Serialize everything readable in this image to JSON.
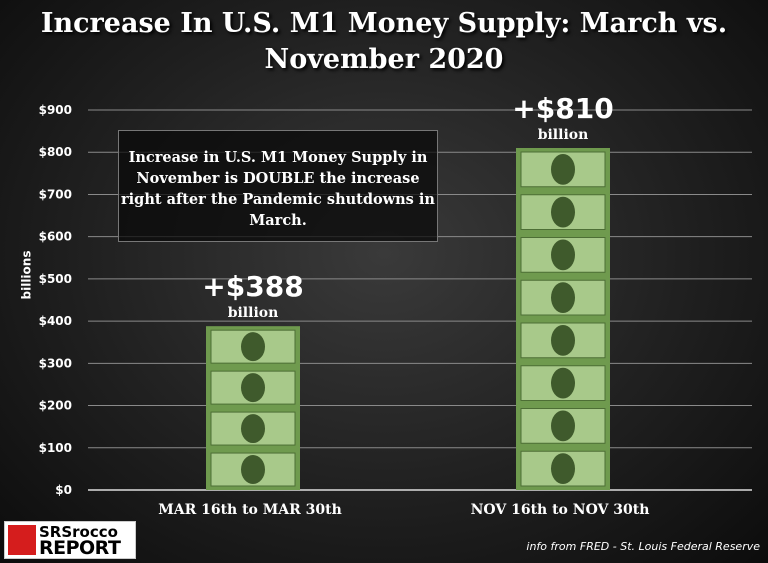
{
  "chart_data": {
    "type": "bar",
    "title": "Increase In U.S. M1 Money Supply:  March vs. November 2020",
    "ylabel": "billions",
    "categories": [
      "MAR 16th to MAR 30th",
      "NOV 16th to NOV 30th"
    ],
    "values": [
      388,
      810
    ],
    "data_labels": [
      {
        "value": "+$388",
        "unit": "billion"
      },
      {
        "value": "+$810",
        "unit": "billion"
      }
    ],
    "yticks": [
      "$0",
      "$100",
      "$200",
      "$300",
      "$400",
      "$500",
      "$600",
      "$700",
      "$800",
      "$900"
    ],
    "ylim": [
      0,
      900
    ],
    "grid": true,
    "annotation": "Increase in U.S. M1 Money Supply in November is DOUBLE the increase right after the Pandemic shutdowns in March.",
    "bar_color": "#6f9a4e"
  },
  "source": "info from FRED - St. Louis Federal Reserve",
  "logo": {
    "line1": "SRSrocco",
    "line2": "REPORT"
  }
}
